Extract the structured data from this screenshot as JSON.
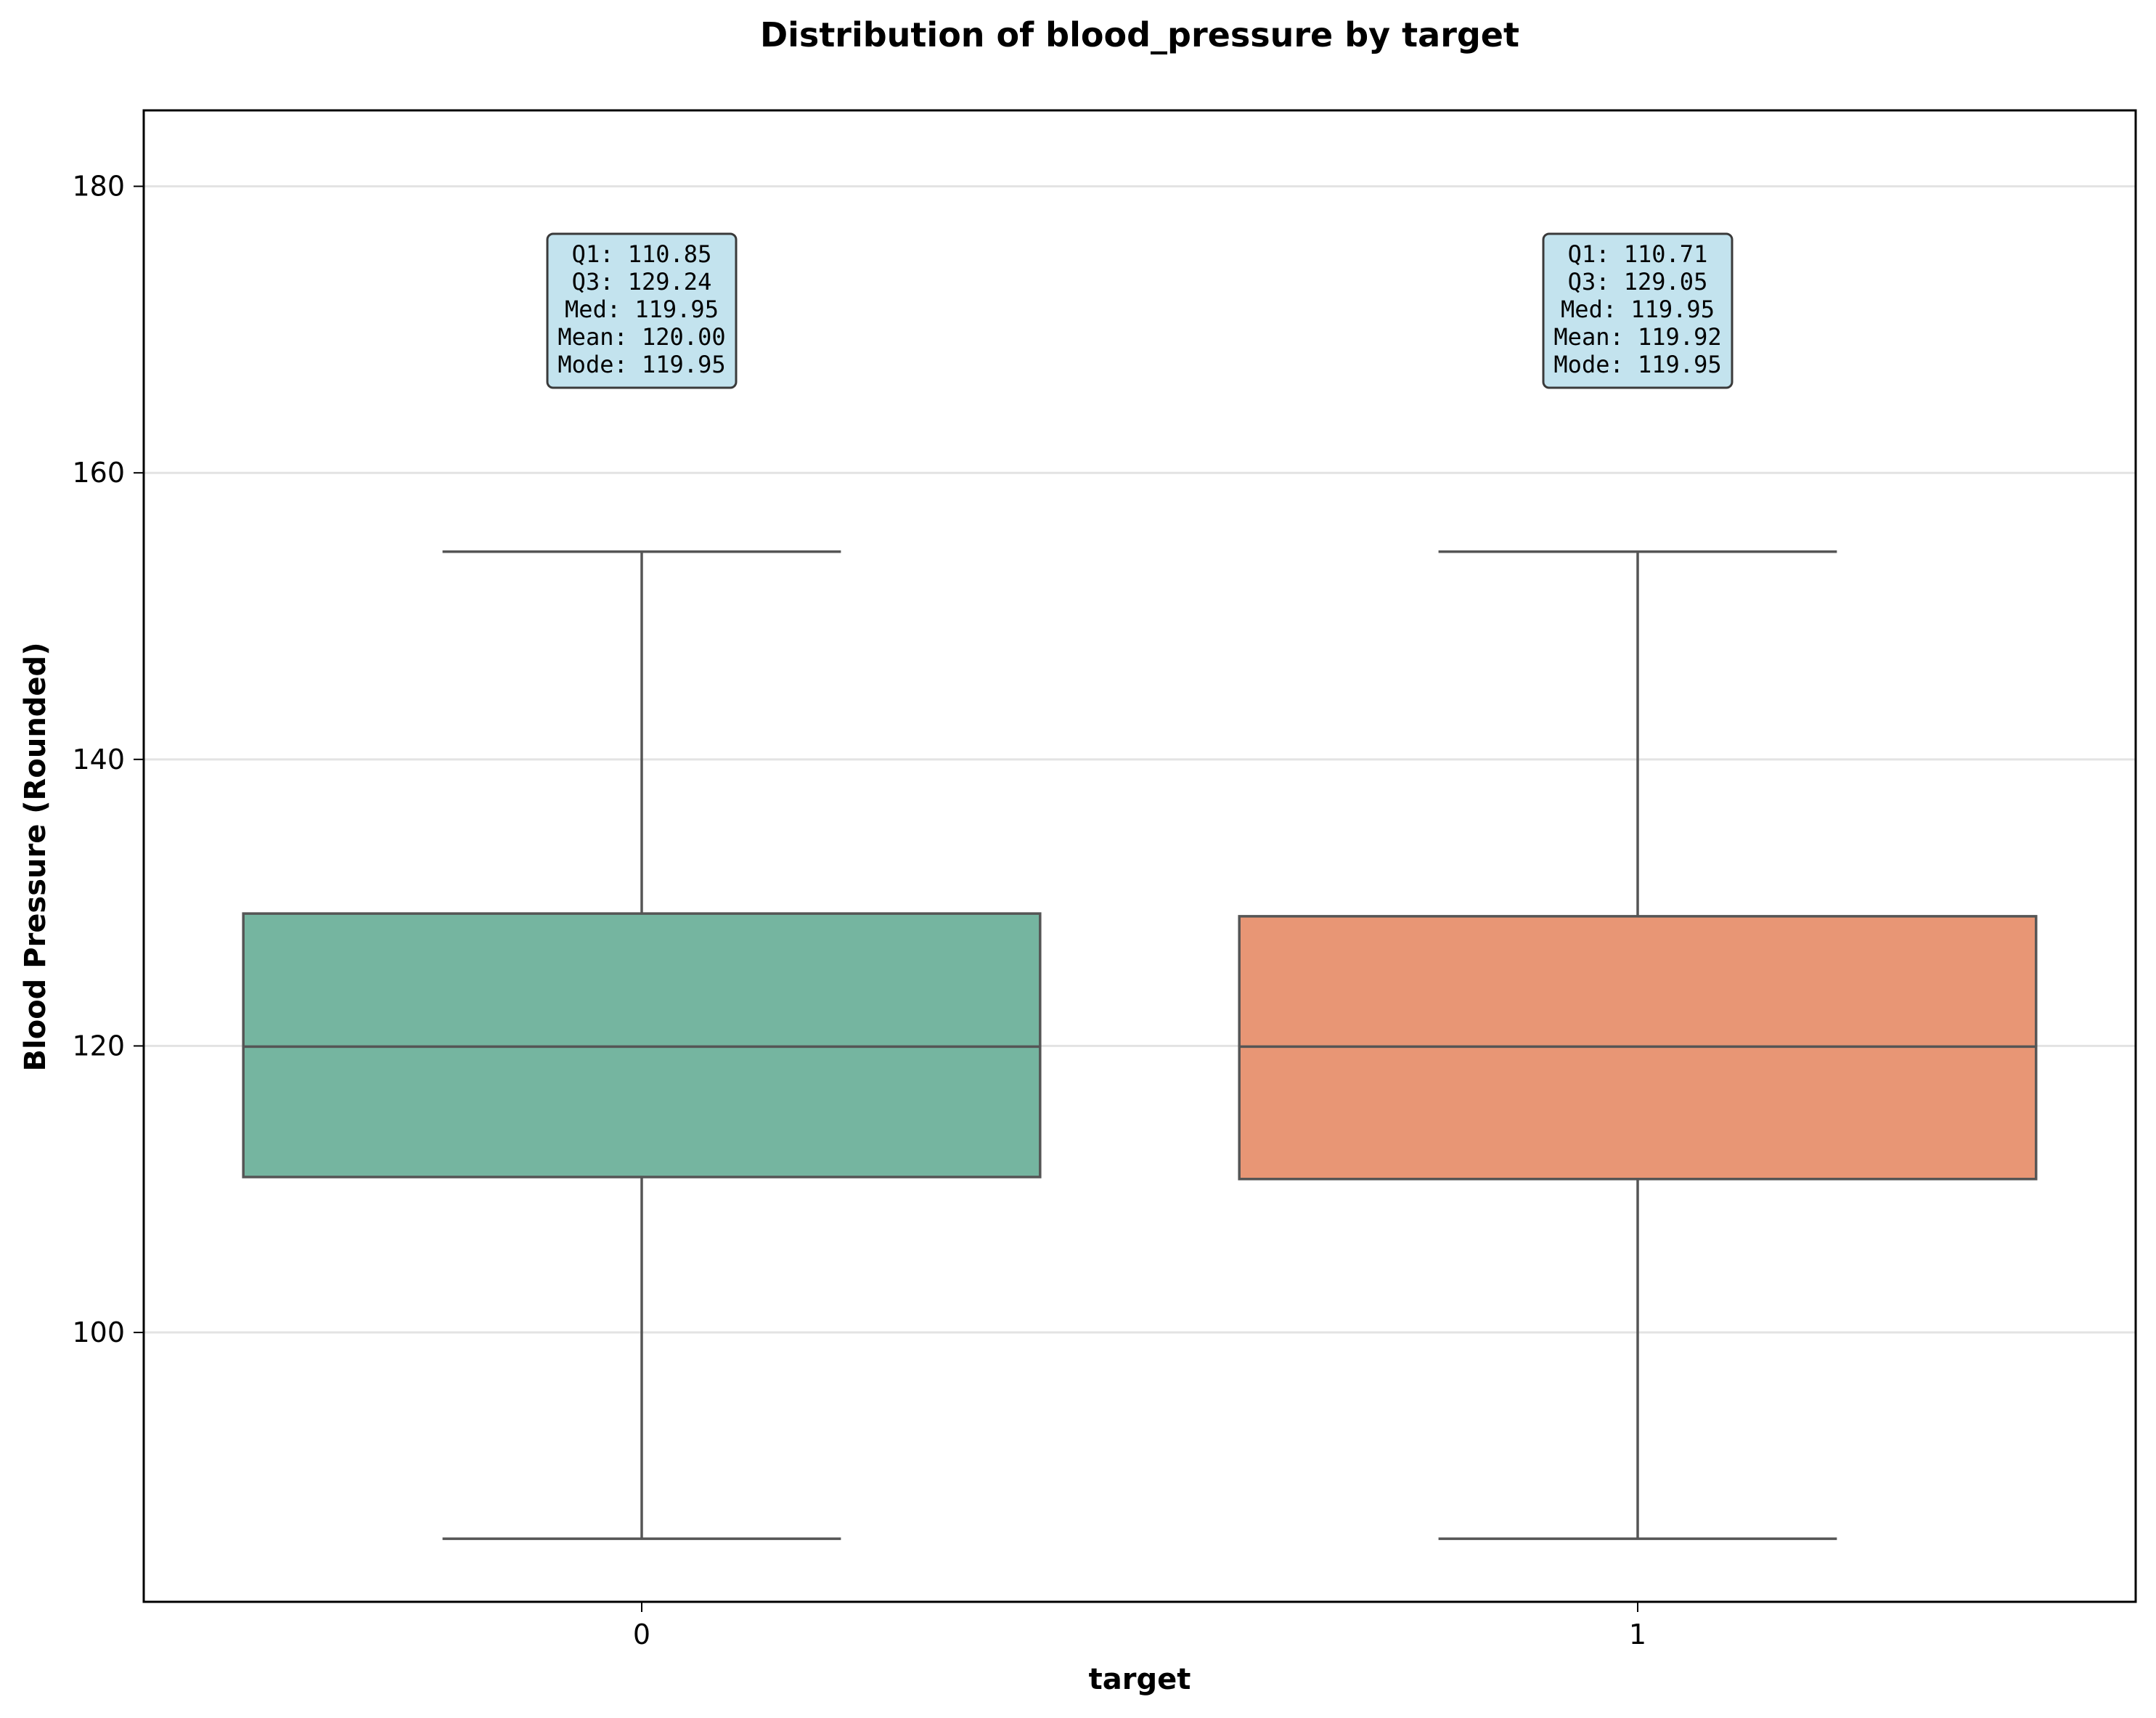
{
  "chart_data": {
    "type": "box",
    "title": "Distribution of blood_pressure by target",
    "xlabel": "target",
    "ylabel": "Blood Pressure (Rounded)",
    "ylim": [
      81.2,
      185.3
    ],
    "yticks": [
      100,
      120,
      140,
      160,
      180
    ],
    "grid": "y",
    "categories": [
      "0",
      "1"
    ],
    "boxes": [
      {
        "category": "0",
        "whisker_low": 85.6,
        "q1": 110.85,
        "median": 119.95,
        "q3": 129.24,
        "whisker_high": 154.5,
        "color": "#75b5a0",
        "annotation": [
          "Q1: 110.85",
          "Q3: 129.24",
          "Med: 119.95",
          "Mean: 120.00",
          "Mode: 119.95"
        ]
      },
      {
        "category": "1",
        "whisker_low": 85.6,
        "q1": 110.71,
        "median": 119.95,
        "q3": 129.05,
        "whisker_high": 154.5,
        "color": "#e89675",
        "annotation": [
          "Q1: 110.71",
          "Q3: 129.05",
          "Med: 119.95",
          "Mean: 119.92",
          "Mode: 119.95"
        ]
      }
    ],
    "annotation_style": {
      "background": "#c3e3ee",
      "border": "#3a3a3a"
    }
  }
}
